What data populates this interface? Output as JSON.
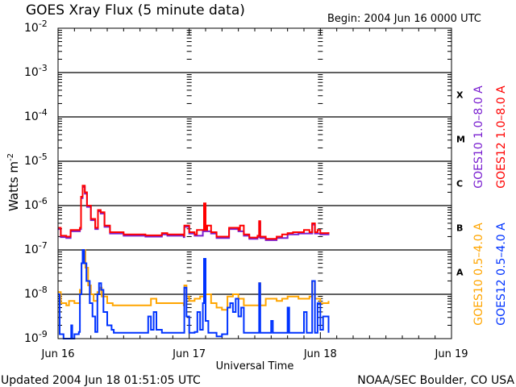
{
  "chart_data": {
    "type": "line",
    "title": "GOES Xray Flux (5 minute data)",
    "begin_label": "Begin:  2004 Jun 16 0000 UTC",
    "ylabel": "Watts m",
    "ylabel_exp": "-2",
    "xlabel": "Universal Time",
    "y_scale": "log",
    "ylim_log10": [
      -9,
      -2
    ],
    "y_ticks": [
      {
        "base": "10",
        "exp": "-2"
      },
      {
        "base": "10",
        "exp": "-3"
      },
      {
        "base": "10",
        "exp": "-4"
      },
      {
        "base": "10",
        "exp": "-5"
      },
      {
        "base": "10",
        "exp": "-6"
      },
      {
        "base": "10",
        "exp": "-7"
      },
      {
        "base": "10",
        "exp": "-8"
      },
      {
        "base": "10",
        "exp": "-9"
      }
    ],
    "xlim_hours": [
      0,
      72
    ],
    "x_ticks": [
      {
        "label": "Jun 16",
        "hour": 0
      },
      {
        "label": "Jun 17",
        "hour": 24
      },
      {
        "label": "Jun 18",
        "hour": 48
      },
      {
        "label": "Jun 19",
        "hour": 72
      }
    ],
    "flare_classes": [
      "X",
      "M",
      "C",
      "B",
      "A"
    ],
    "grid": true,
    "legend_placement": "right",
    "series": [
      {
        "name": "GOES10 1.0-8.0 A",
        "label": "GOES10 1.0–8.0 A",
        "color": "#7a1fd0",
        "x_hours": [
          0,
          0.5,
          1.5,
          2.3,
          3.6,
          4.0,
          4.2,
          4.5,
          4.9,
          5.3,
          6.0,
          6.8,
          7.3,
          7.8,
          8.5,
          9.5,
          12,
          16,
          19,
          20,
          23,
          23.1,
          24,
          25,
          26.5,
          26.7,
          27,
          28,
          29,
          30,
          31.3,
          32,
          33,
          34,
          35,
          36.5,
          36.8,
          37,
          38,
          40,
          42,
          44,
          46,
          46.5,
          47,
          48,
          49.5
        ],
        "log10_flux": [
          -6.53,
          -6.71,
          -6.73,
          -6.58,
          -6.58,
          -6.53,
          -5.83,
          -5.58,
          -5.73,
          -6.03,
          -6.33,
          -6.53,
          -6.13,
          -6.18,
          -6.48,
          -6.63,
          -6.68,
          -6.7,
          -6.65,
          -6.68,
          -6.71,
          -6.48,
          -6.63,
          -6.68,
          -6.58,
          -5.98,
          -6.58,
          -6.63,
          -6.73,
          -6.73,
          -6.53,
          -6.53,
          -6.58,
          -6.68,
          -6.75,
          -6.71,
          -6.38,
          -6.73,
          -6.78,
          -6.73,
          -6.65,
          -6.63,
          -6.63,
          -6.43,
          -6.63,
          -6.65,
          -6.63
        ]
      },
      {
        "name": "GOES12 1.0-8.0 A",
        "label": "GOES12 1.0–8.0 A",
        "color": "#ff0000",
        "x_hours": [
          0,
          0.5,
          1.5,
          2.3,
          3.6,
          4.0,
          4.2,
          4.5,
          4.9,
          5.3,
          6.0,
          6.8,
          7.3,
          7.8,
          8.5,
          9.5,
          12,
          16,
          19,
          20,
          23,
          23.1,
          24,
          25,
          25.4,
          26,
          26.5,
          26.7,
          27,
          27.3,
          28,
          29,
          30,
          31.3,
          32,
          33,
          33.3,
          34,
          35,
          36.5,
          36.8,
          37,
          38,
          40,
          41,
          42,
          43,
          44,
          45,
          46,
          46.5,
          47,
          47.5,
          48,
          49.5
        ],
        "log10_flux": [
          -6.5,
          -6.68,
          -6.7,
          -6.55,
          -6.55,
          -6.5,
          -5.8,
          -5.55,
          -5.7,
          -6.0,
          -6.3,
          -6.5,
          -6.1,
          -6.15,
          -6.45,
          -6.6,
          -6.65,
          -6.67,
          -6.62,
          -6.65,
          -6.68,
          -6.45,
          -6.6,
          -6.65,
          -6.55,
          -6.55,
          -6.55,
          -5.95,
          -6.55,
          -6.45,
          -6.6,
          -6.7,
          -6.7,
          -6.5,
          -6.5,
          -6.55,
          -6.45,
          -6.65,
          -6.72,
          -6.68,
          -6.35,
          -6.7,
          -6.75,
          -6.7,
          -6.65,
          -6.62,
          -6.6,
          -6.6,
          -6.55,
          -6.6,
          -6.4,
          -6.6,
          -6.55,
          -6.62,
          -6.6
        ]
      },
      {
        "name": "GOES10 0.5-4.0 A",
        "label": "GOES10 0.5–4.0 A",
        "color": "#ffa500",
        "x_hours": [
          0,
          0.5,
          1.5,
          2,
          3,
          3.9,
          4.0,
          4.3,
          4.6,
          5,
          5.5,
          6,
          6.5,
          7.2,
          7.6,
          8,
          9,
          10,
          16,
          17,
          18,
          23,
          23.1,
          23.5,
          24,
          25,
          26,
          26.7,
          27,
          28,
          29,
          30,
          31,
          32,
          33,
          34,
          36,
          36.8,
          37,
          38,
          40,
          41,
          42,
          44,
          46,
          46.5,
          47,
          48,
          49.5
        ],
        "log10_flux": [
          -7.95,
          -8.2,
          -8.25,
          -8.15,
          -8.2,
          -8.2,
          -7.9,
          -7.3,
          -7.0,
          -7.4,
          -7.8,
          -8.0,
          -8.15,
          -7.95,
          -7.85,
          -8.05,
          -8.2,
          -8.25,
          -8.25,
          -8.1,
          -8.2,
          -8.25,
          -7.8,
          -8.05,
          -8.15,
          -8.1,
          -8.05,
          -7.2,
          -8.0,
          -8.2,
          -8.3,
          -8.35,
          -8.05,
          -8.0,
          -8.1,
          -8.25,
          -8.25,
          -7.75,
          -8.25,
          -8.1,
          -8.15,
          -8.1,
          -8.05,
          -8.1,
          -8.05,
          -7.7,
          -8.1,
          -8.2,
          -8.15
        ]
      },
      {
        "name": "GOES12 0.5-4.0 A",
        "label": "GOES12 0.5–4.0 A",
        "color": "#0033ff",
        "x_hours": [
          0,
          0.3,
          1,
          2,
          2.4,
          2.6,
          3.0,
          3.4,
          3.8,
          4.0,
          4.3,
          4.5,
          4.8,
          5.2,
          5.8,
          6.3,
          6.8,
          7.2,
          7.5,
          7.9,
          8.3,
          9.0,
          9.8,
          10.2,
          14,
          16,
          16.5,
          17,
          17.5,
          18,
          19,
          23,
          23.1,
          23.5,
          24,
          25,
          25.5,
          26,
          26.5,
          26.7,
          27,
          27.5,
          29,
          30,
          31,
          31.5,
          32,
          32.5,
          33,
          33.5,
          34,
          36,
          36.8,
          37,
          38,
          39,
          39.3,
          41,
          42,
          42.3,
          44,
          45,
          45.5,
          46.5,
          47,
          47.5,
          48,
          48.5,
          49.5
        ],
        "log10_flux": [
          -8.0,
          -8.9,
          -9.0,
          -9.0,
          -8.7,
          -9.0,
          -8.9,
          -8.9,
          -8.85,
          -8.0,
          -7.3,
          -7.0,
          -7.3,
          -7.7,
          -8.2,
          -8.5,
          -8.85,
          -8.0,
          -7.75,
          -7.9,
          -8.4,
          -8.7,
          -8.8,
          -8.87,
          -8.87,
          -8.87,
          -8.5,
          -8.8,
          -8.4,
          -8.8,
          -8.87,
          -8.87,
          -7.85,
          -8.5,
          -8.87,
          -8.85,
          -8.4,
          -8.8,
          -8.2,
          -7.2,
          -8.6,
          -8.87,
          -8.95,
          -8.9,
          -8.3,
          -8.2,
          -8.4,
          -8.1,
          -8.5,
          -8.3,
          -8.87,
          -8.87,
          -7.75,
          -8.87,
          -8.87,
          -8.6,
          -8.87,
          -8.87,
          -8.3,
          -8.87,
          -8.87,
          -8.4,
          -8.87,
          -7.7,
          -8.87,
          -8.2,
          -8.8,
          -8.5,
          -8.87
        ]
      }
    ]
  },
  "footer": {
    "updated": "Updated 2004 Jun 18 01:51:05 UTC",
    "credit": "NOAA/SEC Boulder, CO USA"
  }
}
